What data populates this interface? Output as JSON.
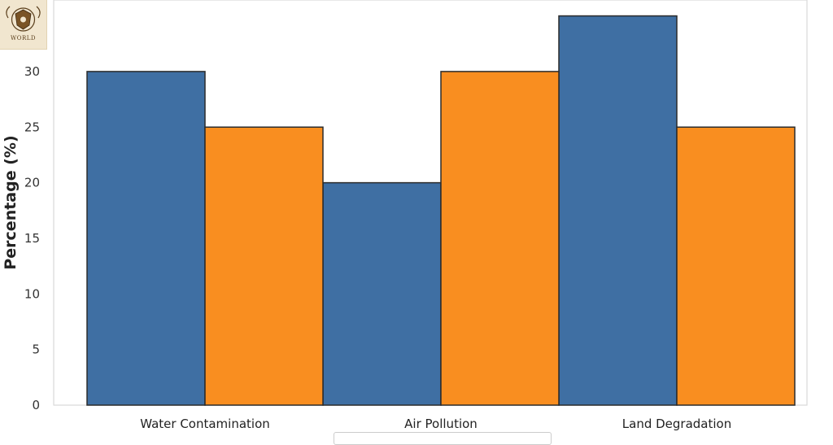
{
  "logo": {
    "text": "WORLD",
    "icon": "shield-emblem-icon"
  },
  "chart_data": {
    "type": "bar",
    "title": "",
    "xlabel": "",
    "ylabel": "Percentage (%)",
    "categories": [
      "Water Contamination",
      "Air Pollution",
      "Land Degradation"
    ],
    "series": [
      {
        "color": "#3f6fa3",
        "values": [
          30,
          20,
          35
        ]
      },
      {
        "color": "#f98e20",
        "values": [
          25,
          30,
          25
        ]
      }
    ],
    "ylim": [
      0,
      36
    ],
    "yticks": [
      0,
      5,
      10,
      15,
      20,
      25,
      30
    ],
    "grid": false,
    "legend": "bottom-center"
  }
}
